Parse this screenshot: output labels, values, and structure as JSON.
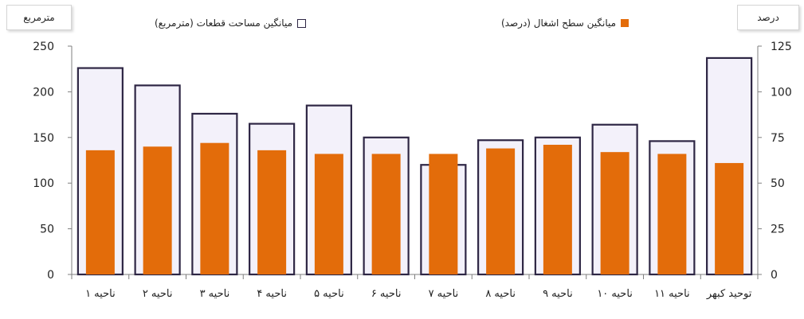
{
  "chart_data": {
    "type": "bar",
    "categories": [
      "ناحیه ۱",
      "ناحیه ۲",
      "ناحیه ۳",
      "ناحیه ۴",
      "ناحیه ۵",
      "ناحیه ۶",
      "ناحیه ۷",
      "ناحیه ۸",
      "ناحیه ۹",
      "ناحیه ۱۰",
      "ناحیه ۱۱",
      "توحید کبهر"
    ],
    "series": [
      {
        "name": "میانگین مساحت قطعات (مترمربع)",
        "axis": "left",
        "style": "outline",
        "values": [
          226,
          207,
          176,
          165,
          185,
          150,
          120,
          147,
          150,
          164,
          146,
          237
        ]
      },
      {
        "name": "میانگین سطح اشغال (درصد)",
        "axis": "right",
        "style": "fill",
        "values": [
          68,
          70,
          72,
          68,
          66,
          66,
          66,
          69,
          71,
          67,
          66,
          61
        ]
      }
    ],
    "left_axis": {
      "label": "مترمربع",
      "ylim": [
        0,
        250
      ],
      "ticks": [
        "0",
        "50",
        "100",
        "150",
        "200",
        "250"
      ]
    },
    "right_axis": {
      "label": "درصد",
      "ylim": [
        0,
        125
      ],
      "ticks": [
        "0",
        "25",
        "50",
        "75",
        "100",
        "125"
      ]
    },
    "grid": false,
    "legend_position": "top",
    "colors": {
      "outline_border": "#2e2644",
      "outline_fill": "#f3f1fa",
      "fill_bar": "#e36c0a",
      "axis": "#7f7f7f"
    }
  }
}
